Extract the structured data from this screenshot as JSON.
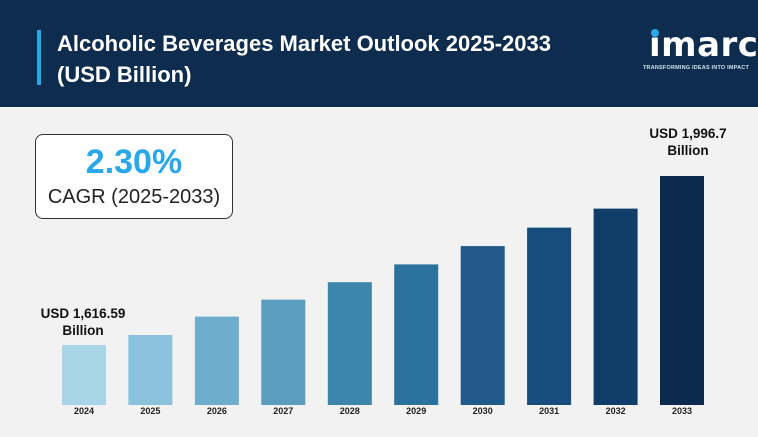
{
  "header": {
    "title": "Alcoholic Beverages Market Outlook 2025-2033 (USD Billion)",
    "logo_text": "imarc",
    "logo_tagline": "TRANSFORMING IDEAS INTO IMPACT"
  },
  "cagr": {
    "value": "2.30%",
    "label": "CAGR (2025-2033)"
  },
  "chart_data": {
    "type": "bar",
    "title": "Alcoholic Beverages Market Outlook 2025-2033 (USD Billion)",
    "categories": [
      "2024",
      "2025",
      "2026",
      "2027",
      "2028",
      "2029",
      "2030",
      "2031",
      "2032",
      "2033"
    ],
    "values": [
      1616.59,
      1639.1,
      1680.5,
      1718.8,
      1757.9,
      1797.8,
      1839.0,
      1880.6,
      1923.3,
      1996.7
    ],
    "annotations": [
      {
        "category": "2024",
        "line1": "USD 1,616.59",
        "line2": "Billion"
      },
      {
        "category": "2033",
        "line1": "USD 1,996.7",
        "line2": "Billion"
      }
    ],
    "colors": [
      "#a9d5e8",
      "#8cc3dc",
      "#6eadcc",
      "#5b9dbf",
      "#3c85ab",
      "#2c729e",
      "#1f5a8a",
      "#174d7d",
      "#113d6a",
      "#0b2a4d"
    ],
    "xlabel": "",
    "ylabel": "",
    "grid": false,
    "legend": "none"
  }
}
